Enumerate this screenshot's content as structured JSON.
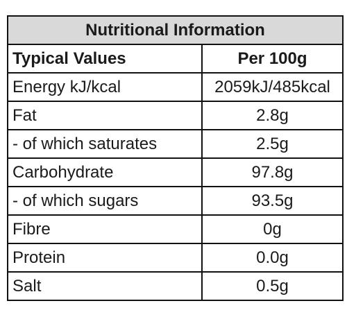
{
  "table": {
    "title": "Nutritional Information",
    "header": [
      "Typical Values",
      "Per 100g"
    ],
    "rows": [
      [
        "Energy kJ/kcal",
        "2059kJ/485kcal"
      ],
      [
        "Fat",
        "2.8g"
      ],
      [
        "- of which saturates",
        "2.5g"
      ],
      [
        "Carbohydrate",
        "97.8g"
      ],
      [
        "- of which sugars",
        "93.5g"
      ],
      [
        "Fibre",
        "0g"
      ],
      [
        "Protein",
        "0.0g"
      ],
      [
        "Salt",
        "0.5g"
      ]
    ]
  }
}
